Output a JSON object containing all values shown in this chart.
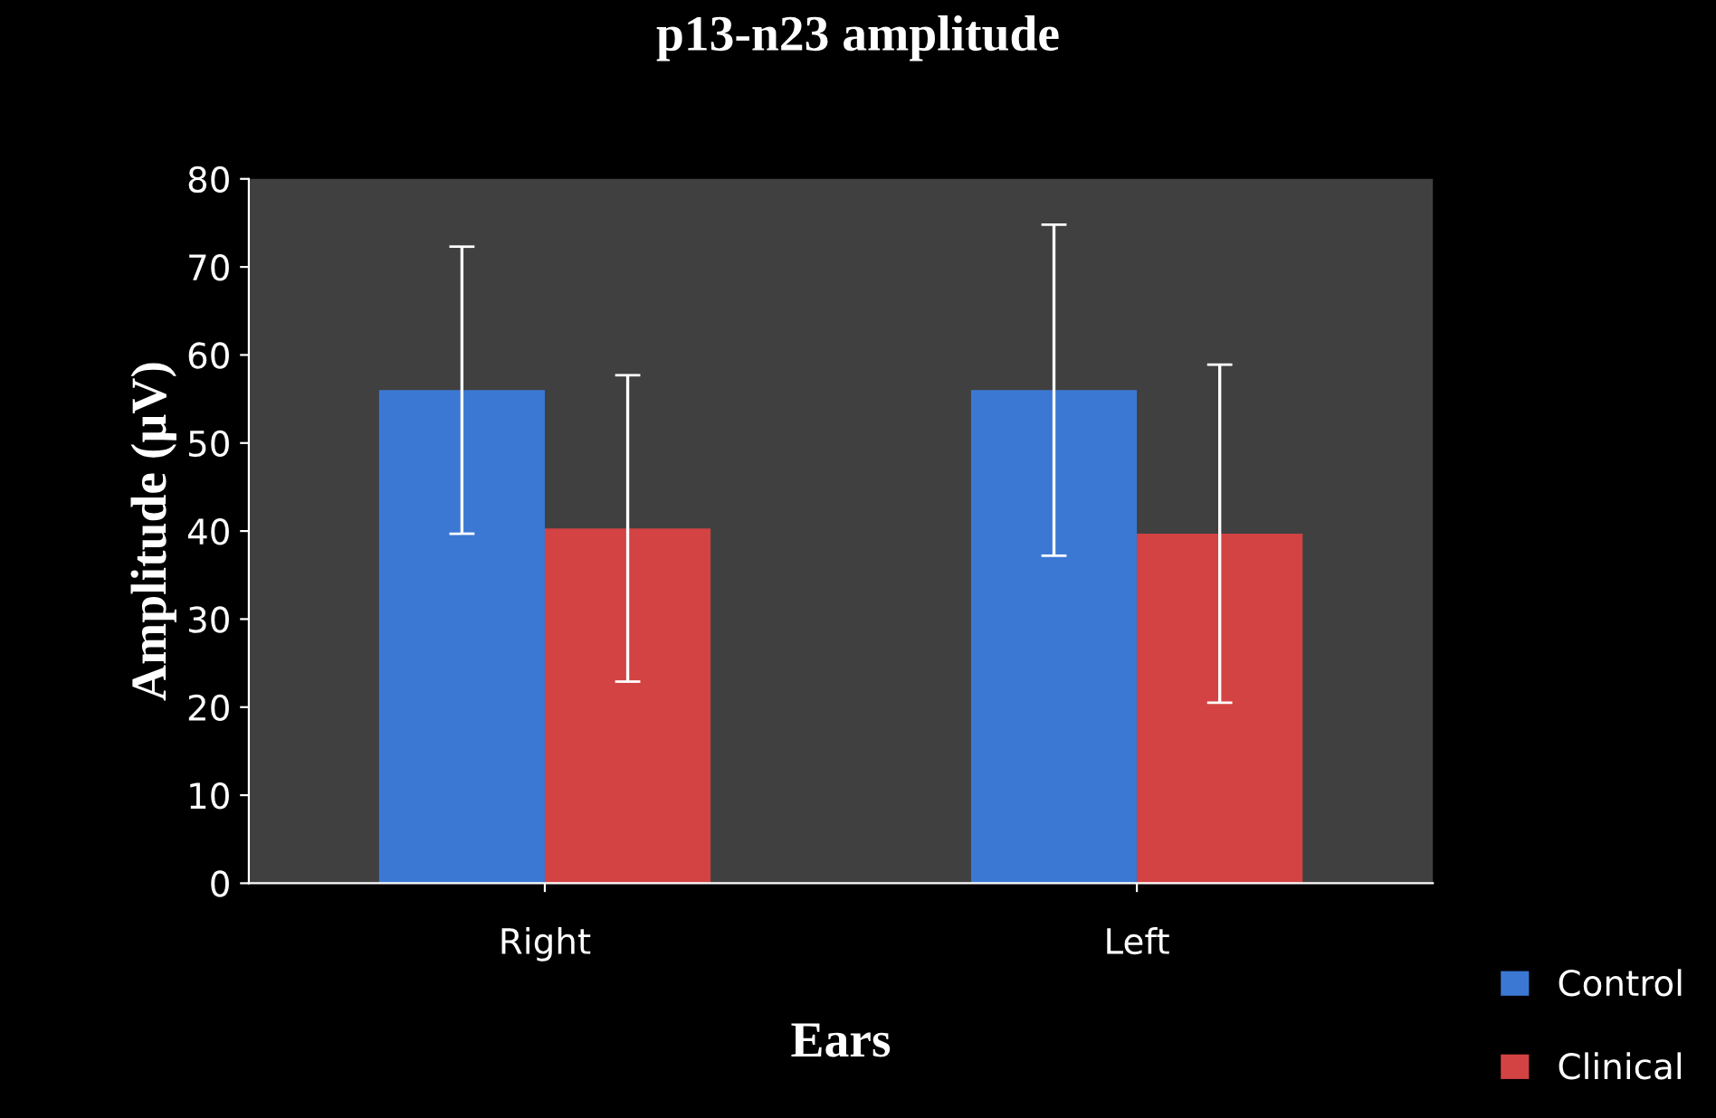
{
  "chart_data": {
    "type": "bar",
    "title": "p13-n23 amplitude",
    "xlabel": "Ears",
    "ylabel": "Amplitude (µV)",
    "categories": [
      "Right",
      "Left"
    ],
    "series": [
      {
        "name": "Control",
        "color": "#3b78d4",
        "values": [
          56,
          56
        ],
        "errors": [
          16.3,
          18.8
        ]
      },
      {
        "name": "Clinical",
        "color": "#d34343",
        "values": [
          40.3,
          39.7
        ],
        "errors": [
          17.4,
          19.2
        ]
      }
    ],
    "ylim": [
      0,
      80
    ],
    "yticks": [
      0,
      10,
      20,
      30,
      40,
      50,
      60,
      70,
      80
    ],
    "grid": false,
    "legend": "bottom right"
  }
}
